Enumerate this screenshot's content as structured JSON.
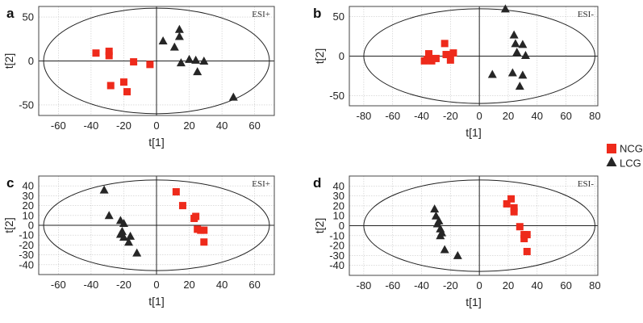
{
  "legend": {
    "entries": [
      {
        "name": "NCG",
        "marker": "square",
        "color": "#ee2a1b"
      },
      {
        "name": "LCG",
        "marker": "triangle",
        "color": "#262626"
      }
    ]
  },
  "chart_data": [
    {
      "panel": "a",
      "type": "scatter",
      "mode_label": "ESI+",
      "xlabel": "t[1]",
      "ylabel": "t[2]",
      "xlim": [
        -72,
        72
      ],
      "ylim": [
        -62,
        62
      ],
      "xticks": [
        -60,
        -40,
        -20,
        0,
        20,
        40,
        60
      ],
      "yticks": [
        -50,
        0,
        50
      ],
      "ellipse": {
        "rx": 69,
        "ry": 60
      },
      "series": [
        {
          "name": "NCG",
          "color": "#ee2a1b",
          "marker": "square",
          "points": [
            [
              -37,
              9
            ],
            [
              -29,
              11
            ],
            [
              -29,
              6
            ],
            [
              -28,
              -28
            ],
            [
              -20,
              -24
            ],
            [
              -18,
              -35
            ],
            [
              -14,
              -1
            ],
            [
              -4,
              -4
            ]
          ]
        },
        {
          "name": "LCG",
          "color": "#262626",
          "marker": "triangle",
          "points": [
            [
              4,
              23
            ],
            [
              11,
              16
            ],
            [
              14,
              36
            ],
            [
              14,
              28
            ],
            [
              15,
              -2
            ],
            [
              20,
              2
            ],
            [
              24,
              1
            ],
            [
              25,
              -12
            ],
            [
              29,
              0
            ],
            [
              47,
              -41
            ]
          ]
        }
      ]
    },
    {
      "panel": "b",
      "type": "scatter",
      "mode_label": "ESI-",
      "xlabel": "t[1]",
      "ylabel": "t[2]",
      "xlim": [
        -90,
        82
      ],
      "ylim": [
        -63,
        63
      ],
      "xticks": [
        -80,
        -60,
        -40,
        -20,
        0,
        20,
        40,
        60,
        80
      ],
      "yticks": [
        -50,
        0,
        50
      ],
      "ellipse": {
        "rx": 80,
        "ry": 60
      },
      "series": [
        {
          "name": "NCG",
          "color": "#ee2a1b",
          "marker": "square",
          "points": [
            [
              -38,
              -6
            ],
            [
              -36,
              -4
            ],
            [
              -35,
              3
            ],
            [
              -33,
              -6
            ],
            [
              -30,
              -3
            ],
            [
              -24,
              16
            ],
            [
              -23,
              2
            ],
            [
              -20,
              -5
            ],
            [
              -18,
              4
            ]
          ]
        },
        {
          "name": "LCG",
          "color": "#262626",
          "marker": "triangle",
          "points": [
            [
              9,
              -23
            ],
            [
              18,
              60
            ],
            [
              23,
              -21
            ],
            [
              24,
              27
            ],
            [
              25,
              16
            ],
            [
              26,
              5
            ],
            [
              28,
              -38
            ],
            [
              30,
              15
            ],
            [
              30,
              -24
            ],
            [
              32,
              1
            ]
          ]
        }
      ]
    },
    {
      "panel": "c",
      "type": "scatter",
      "mode_label": "ESI+",
      "xlabel": "t[1]",
      "ylabel": "t[2]",
      "xlim": [
        -72,
        72
      ],
      "ylim": [
        -50,
        50
      ],
      "xticks": [
        -60,
        -40,
        -20,
        0,
        20,
        40,
        60
      ],
      "yticks": [
        -40,
        -30,
        -20,
        -10,
        0,
        10,
        20,
        30,
        40
      ],
      "ellipse": {
        "rx": 69,
        "ry": 46
      },
      "series": [
        {
          "name": "NCG",
          "color": "#ee2a1b",
          "marker": "square",
          "points": [
            [
              12,
              34
            ],
            [
              16,
              20
            ],
            [
              23,
              7
            ],
            [
              24,
              9
            ],
            [
              25,
              -4
            ],
            [
              27,
              -5
            ],
            [
              29,
              -5
            ],
            [
              29,
              -17
            ]
          ]
        },
        {
          "name": "LCG",
          "color": "#262626",
          "marker": "triangle",
          "points": [
            [
              -32,
              36
            ],
            [
              -29,
              10
            ],
            [
              -22,
              5
            ],
            [
              -22,
              -9
            ],
            [
              -21,
              -6
            ],
            [
              -20,
              2
            ],
            [
              -20,
              -12
            ],
            [
              -17,
              -17
            ],
            [
              -16,
              -11
            ],
            [
              -12,
              -28
            ]
          ]
        }
      ]
    },
    {
      "panel": "d",
      "type": "scatter",
      "mode_label": "ESI-",
      "xlabel": "t[1]",
      "ylabel": "t[2]",
      "xlim": [
        -90,
        82
      ],
      "ylim": [
        -50,
        50
      ],
      "xticks": [
        -80,
        -60,
        -40,
        -20,
        0,
        20,
        40,
        60,
        80
      ],
      "yticks": [
        -40,
        -30,
        -20,
        -10,
        0,
        10,
        20,
        30,
        40
      ],
      "ellipse": {
        "rx": 80,
        "ry": 46
      },
      "series": [
        {
          "name": "NCG",
          "color": "#ee2a1b",
          "marker": "square",
          "points": [
            [
              19,
              22
            ],
            [
              22,
              27
            ],
            [
              24,
              18
            ],
            [
              24,
              14
            ],
            [
              28,
              -1
            ],
            [
              31,
              -13
            ],
            [
              31,
              -9
            ],
            [
              33,
              -9
            ],
            [
              33,
              -26
            ]
          ]
        },
        {
          "name": "LCG",
          "color": "#262626",
          "marker": "triangle",
          "points": [
            [
              -31,
              17
            ],
            [
              -30,
              10
            ],
            [
              -29,
              2
            ],
            [
              -28,
              5
            ],
            [
              -27,
              -3
            ],
            [
              -27,
              -10
            ],
            [
              -26,
              -7
            ],
            [
              -24,
              -24
            ],
            [
              -15,
              -30
            ]
          ]
        }
      ]
    }
  ]
}
